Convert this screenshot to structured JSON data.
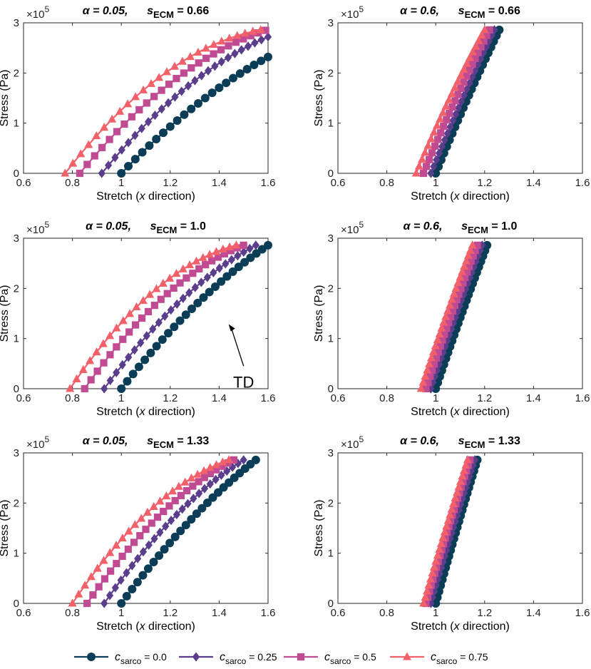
{
  "legend": [
    {
      "var": "c",
      "sub": "sarco",
      "value": " = 0.0",
      "color": "#0b3d56",
      "marker": "circle"
    },
    {
      "var": "c",
      "sub": "sarco",
      "value": " = 0.25",
      "color": "#5a3e8c",
      "marker": "diamond"
    },
    {
      "var": "c",
      "sub": "sarco",
      "value": " = 0.5",
      "color": "#c14b93",
      "marker": "square"
    },
    {
      "var": "c",
      "sub": "sarco",
      "value": " = 0.75",
      "color": "#f2606a",
      "marker": "triangle"
    }
  ],
  "chart_data": [
    {
      "type": "line",
      "title_alpha": "α = 0.05,",
      "title_s": "s",
      "title_sub": "ECM",
      "title_val": " = 0.66",
      "xlabel_pre": "Stretch (",
      "xlabel_var": "x",
      "xlabel_post": " direction)",
      "ylabel": "Stress (Pa)",
      "y_exponent_base": "×10",
      "y_exponent": "5",
      "xlim": [
        0.6,
        1.6
      ],
      "ylim": [
        0,
        3
      ],
      "xticks": [
        "0.6",
        "0.8",
        "1",
        "1.2",
        "1.4",
        "1.6"
      ],
      "yticks": [
        "0",
        "1",
        "2",
        "3"
      ],
      "series": [
        {
          "name": "c_sarco = 0.0",
          "x0": 1.0,
          "x1": 1.6,
          "y1": 2.32,
          "bulge": 0.14,
          "n": 22
        },
        {
          "name": "c_sarco = 0.25",
          "x0": 0.92,
          "x1": 1.6,
          "y1": 2.72,
          "bulge": 0.22,
          "n": 26
        },
        {
          "name": "c_sarco = 0.5",
          "x0": 0.83,
          "x1": 1.59,
          "y1": 2.85,
          "bulge": 0.26,
          "n": 26
        },
        {
          "name": "c_sarco = 0.75",
          "x0": 0.77,
          "x1": 1.57,
          "y1": 2.86,
          "bulge": 0.34,
          "n": 26
        }
      ]
    },
    {
      "type": "line",
      "title_alpha": "α = 0.6,",
      "title_s": "s",
      "title_sub": "ECM",
      "title_val": " = 0.66",
      "xlabel_pre": "Stretch (",
      "xlabel_var": "x",
      "xlabel_post": " direction)",
      "ylabel": "Stress (Pa)",
      "y_exponent_base": "×10",
      "y_exponent": "5",
      "xlim": [
        0.6,
        1.6
      ],
      "ylim": [
        0,
        3
      ],
      "xticks": [
        "0.6",
        "0.8",
        "1",
        "1.2",
        "1.4",
        "1.6"
      ],
      "yticks": [
        "0",
        "1",
        "2",
        "3"
      ],
      "series": [
        {
          "name": "c_sarco = 0.0",
          "x0": 1.0,
          "x1": 1.26,
          "y1": 2.86,
          "bulge": 0.04,
          "n": 24
        },
        {
          "name": "c_sarco = 0.25",
          "x0": 0.98,
          "x1": 1.24,
          "y1": 2.86,
          "bulge": 0.04,
          "n": 24
        },
        {
          "name": "c_sarco = 0.5",
          "x0": 0.95,
          "x1": 1.22,
          "y1": 2.86,
          "bulge": 0.05,
          "n": 24
        },
        {
          "name": "c_sarco = 0.75",
          "x0": 0.92,
          "x1": 1.2,
          "y1": 2.86,
          "bulge": 0.06,
          "n": 24
        }
      ]
    },
    {
      "type": "line",
      "title_alpha": "α = 0.05,",
      "title_s": "s",
      "title_sub": "ECM",
      "title_val": " = 1.0",
      "xlabel_pre": "Stretch (",
      "xlabel_var": "x",
      "xlabel_post": " direction)",
      "ylabel": "Stress (Pa)",
      "y_exponent_base": "×10",
      "y_exponent": "5",
      "xlim": [
        0.6,
        1.6
      ],
      "ylim": [
        0,
        3
      ],
      "xticks": [
        "0.6",
        "0.8",
        "1",
        "1.2",
        "1.4",
        "1.6"
      ],
      "yticks": [
        "0",
        "1",
        "2",
        "3"
      ],
      "annotation": {
        "text": "TD",
        "x": 1.43,
        "y": 1.37
      },
      "series": [
        {
          "name": "c_sarco = 0.0",
          "x0": 1.0,
          "x1": 1.6,
          "y1": 2.86,
          "bulge": 0.14,
          "n": 26
        },
        {
          "name": "c_sarco = 0.25",
          "x0": 0.93,
          "x1": 1.55,
          "y1": 2.86,
          "bulge": 0.2,
          "n": 26
        },
        {
          "name": "c_sarco = 0.5",
          "x0": 0.85,
          "x1": 1.5,
          "y1": 2.86,
          "bulge": 0.26,
          "n": 26
        },
        {
          "name": "c_sarco = 0.75",
          "x0": 0.79,
          "x1": 1.47,
          "y1": 2.86,
          "bulge": 0.32,
          "n": 26
        }
      ]
    },
    {
      "type": "line",
      "title_alpha": "α = 0.6,",
      "title_s": "s",
      "title_sub": "ECM",
      "title_val": " = 1.0",
      "xlabel_pre": "Stretch (",
      "xlabel_var": "x",
      "xlabel_post": " direction)",
      "ylabel": "Stress (Pa)",
      "y_exponent_base": "×10",
      "y_exponent": "5",
      "xlim": [
        0.6,
        1.6
      ],
      "ylim": [
        0,
        3
      ],
      "xticks": [
        "0.6",
        "0.8",
        "1",
        "1.2",
        "1.4",
        "1.6"
      ],
      "yticks": [
        "0",
        "1",
        "2",
        "3"
      ],
      "series": [
        {
          "name": "c_sarco = 0.0",
          "x0": 1.0,
          "x1": 1.21,
          "y1": 2.86,
          "bulge": 0.03,
          "n": 26
        },
        {
          "name": "c_sarco = 0.25",
          "x0": 0.98,
          "x1": 1.19,
          "y1": 2.86,
          "bulge": 0.03,
          "n": 26
        },
        {
          "name": "c_sarco = 0.5",
          "x0": 0.96,
          "x1": 1.17,
          "y1": 2.86,
          "bulge": 0.04,
          "n": 26
        },
        {
          "name": "c_sarco = 0.75",
          "x0": 0.94,
          "x1": 1.15,
          "y1": 2.86,
          "bulge": 0.04,
          "n": 26
        }
      ]
    },
    {
      "type": "line",
      "title_alpha": "α = 0.05,",
      "title_s": "s",
      "title_sub": "ECM",
      "title_val": " = 1.33",
      "xlabel_pre": "Stretch (",
      "xlabel_var": "x",
      "xlabel_post": " direction)",
      "ylabel": "Stress (Pa)",
      "y_exponent_base": "×10",
      "y_exponent": "5",
      "xlim": [
        0.6,
        1.6
      ],
      "ylim": [
        0,
        3
      ],
      "xticks": [
        "0.6",
        "0.8",
        "1",
        "1.2",
        "1.4",
        "1.6"
      ],
      "yticks": [
        "0",
        "1",
        "2",
        "3"
      ],
      "series": [
        {
          "name": "c_sarco = 0.0",
          "x0": 1.0,
          "x1": 1.55,
          "y1": 2.86,
          "bulge": 0.12,
          "n": 26
        },
        {
          "name": "c_sarco = 0.25",
          "x0": 0.93,
          "x1": 1.5,
          "y1": 2.86,
          "bulge": 0.18,
          "n": 26
        },
        {
          "name": "c_sarco = 0.5",
          "x0": 0.86,
          "x1": 1.46,
          "y1": 2.86,
          "bulge": 0.22,
          "n": 26
        },
        {
          "name": "c_sarco = 0.75",
          "x0": 0.8,
          "x1": 1.44,
          "y1": 2.86,
          "bulge": 0.28,
          "n": 26
        }
      ]
    },
    {
      "type": "line",
      "title_alpha": "α = 0.6,",
      "title_s": "s",
      "title_sub": "ECM",
      "title_val": " = 1.33",
      "xlabel_pre": "Stretch (",
      "xlabel_var": "x",
      "xlabel_post": " direction)",
      "ylabel": "Stress (Pa)",
      "y_exponent_base": "×10",
      "y_exponent": "5",
      "xlim": [
        0.6,
        1.6
      ],
      "ylim": [
        0,
        3
      ],
      "xticks": [
        "0.6",
        "0.8",
        "1",
        "1.2",
        "1.4",
        "1.6"
      ],
      "yticks": [
        "0",
        "1",
        "2",
        "3"
      ],
      "series": [
        {
          "name": "c_sarco = 0.0",
          "x0": 1.0,
          "x1": 1.17,
          "y1": 2.86,
          "bulge": 0.02,
          "n": 26
        },
        {
          "name": "c_sarco = 0.25",
          "x0": 0.98,
          "x1": 1.16,
          "y1": 2.86,
          "bulge": 0.02,
          "n": 26
        },
        {
          "name": "c_sarco = 0.5",
          "x0": 0.96,
          "x1": 1.14,
          "y1": 2.86,
          "bulge": 0.03,
          "n": 26
        },
        {
          "name": "c_sarco = 0.75",
          "x0": 0.95,
          "x1": 1.13,
          "y1": 2.86,
          "bulge": 0.03,
          "n": 26
        }
      ]
    }
  ]
}
